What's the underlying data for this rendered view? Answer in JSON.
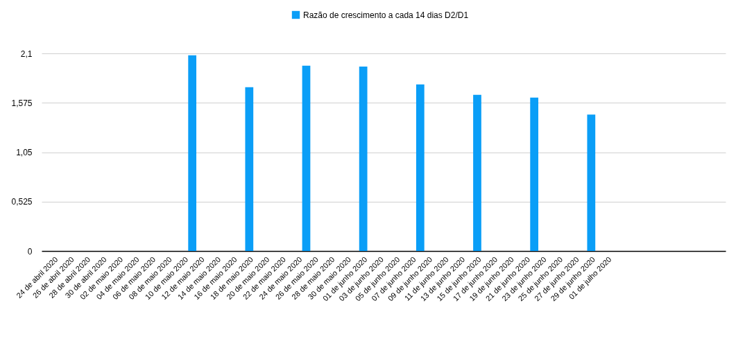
{
  "chart_data": {
    "type": "bar",
    "categories": [
      null,
      "24 de abril 2020",
      null,
      "26 de abril 2020",
      null,
      "28 de abril 2020",
      null,
      "30 de abril 2020",
      null,
      "02 de maio 2020",
      null,
      "04 de maio 2020",
      null,
      "06 de maio 2020",
      null,
      "08 de maio 2020",
      null,
      "10 de maio 2020",
      null,
      "12 de maio 2020",
      null,
      "14 de maio 2020",
      null,
      "16 de maio 2020",
      null,
      "18 de maio 2020",
      null,
      "20 de maio 2020",
      null,
      "22 de maio 2020",
      null,
      "24 de maio 2020",
      null,
      "26 de maio 2020",
      null,
      "28 de maio 2020",
      null,
      "30 de maio 2020",
      null,
      "01 de junho 2020",
      null,
      "03 de junho 2020",
      null,
      "05 de junho 2020",
      null,
      "07 de junho 2020",
      null,
      "09 de junho 2020",
      null,
      "11 de junho 2020",
      null,
      "13 de junho 2020",
      null,
      "15 de junho 2020",
      null,
      "17 de junho 2020",
      null,
      "19 de junho 2020",
      null,
      "21 de junho 2020",
      null,
      "23 de junho 2020",
      null,
      "25 de junho 2020",
      null,
      "27 de junho 2020",
      null,
      "29 de junho 2020",
      null,
      "01 de julho 2020",
      null,
      null,
      null,
      null,
      null,
      null,
      null,
      null,
      null,
      null,
      null,
      null,
      null,
      null
    ],
    "series": [
      {
        "name": "Razão de crescimento a cada 14 dias      D2/D1",
        "color": "#0a9ef7",
        "values": [
          null,
          null,
          null,
          null,
          null,
          null,
          null,
          null,
          null,
          null,
          null,
          null,
          null,
          null,
          null,
          null,
          null,
          null,
          2.08,
          null,
          null,
          null,
          null,
          null,
          null,
          1.74,
          null,
          null,
          null,
          null,
          null,
          null,
          1.97,
          null,
          null,
          null,
          null,
          null,
          null,
          1.96,
          null,
          null,
          null,
          null,
          null,
          null,
          1.77,
          null,
          null,
          null,
          null,
          null,
          null,
          1.66,
          null,
          null,
          null,
          null,
          null,
          null,
          1.63,
          null,
          null,
          null,
          null,
          null,
          null,
          1.45,
          null,
          null,
          null,
          null,
          null,
          null,
          null,
          null,
          null,
          null,
          null,
          null,
          null,
          null,
          null,
          null
        ]
      }
    ],
    "ylim": [
      0,
      2.1
    ],
    "yticks": [
      0,
      {
        "value": 0.525,
        "label": "0,525"
      },
      {
        "value": 1.05,
        "label": "1,05"
      },
      {
        "value": 1.575,
        "label": "1,575"
      },
      {
        "value": 2.1,
        "label": "2,1"
      }
    ],
    "grid": "y",
    "legend": "top"
  }
}
